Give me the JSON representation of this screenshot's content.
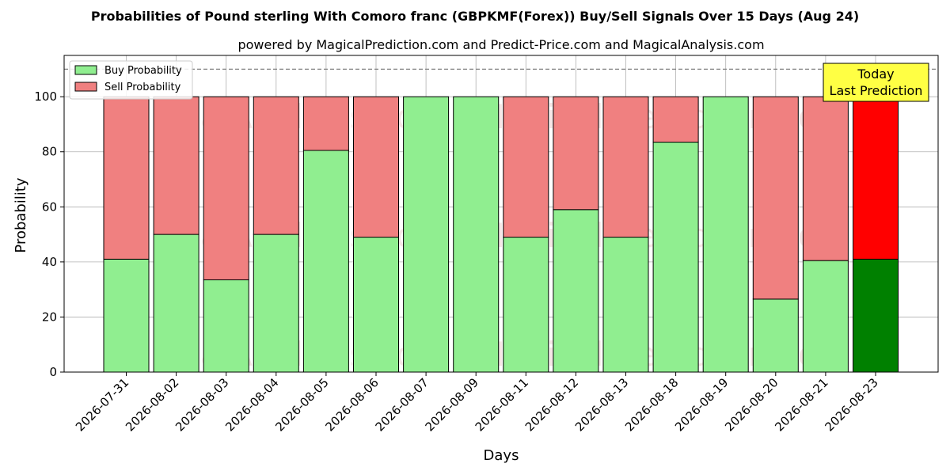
{
  "chart_data": {
    "type": "bar",
    "stacked": true,
    "title": "Probabilities of Pound sterling With Comoro franc (GBPKMF(Forex)) Buy/Sell Signals Over 15 Days (Aug 24)",
    "subtitle": "powered by MagicalPrediction.com and Predict-Price.com and MagicalAnalysis.com",
    "xlabel": "Days",
    "ylabel": "Probability",
    "ylim": [
      0,
      115
    ],
    "yticks": [
      0,
      20,
      40,
      60,
      80,
      100
    ],
    "reference_line": 110,
    "grid": true,
    "legend_position": "top-left",
    "categories": [
      "2026-07-31",
      "2026-08-02",
      "2026-08-03",
      "2026-08-04",
      "2026-08-05",
      "2026-08-06",
      "2026-08-07",
      "2026-08-09",
      "2026-08-11",
      "2026-08-12",
      "2026-08-13",
      "2026-08-18",
      "2026-08-19",
      "2026-08-20",
      "2026-08-21",
      "2026-08-23"
    ],
    "series": [
      {
        "name": "Buy Probability",
        "color": "#90ee90",
        "highlight_color": "#008000",
        "values": [
          41,
          50,
          33.5,
          50,
          80.5,
          49,
          100,
          100,
          49,
          59,
          49,
          83.5,
          100,
          26.5,
          40.5,
          41
        ]
      },
      {
        "name": "Sell Probability",
        "color": "#f08080",
        "highlight_color": "#ff0000",
        "values": [
          59,
          50,
          66.5,
          50,
          19.5,
          51,
          0,
          0,
          51,
          41,
          51,
          16.5,
          0,
          73.5,
          59.5,
          59
        ]
      }
    ],
    "highlight_index": 15,
    "annotation": {
      "lines": [
        "Today",
        "Last Prediction"
      ],
      "background": "#ffff44"
    },
    "watermarks": [
      "MagicalAnalysis.com",
      "MagicalPrediction.com"
    ]
  }
}
